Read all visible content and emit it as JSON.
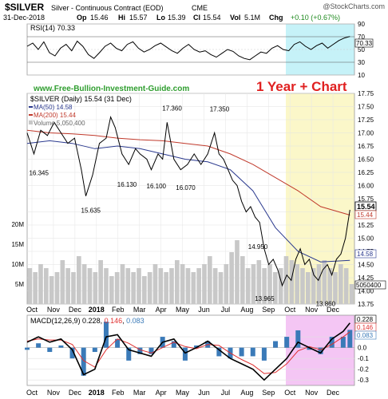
{
  "header": {
    "symbol": "$SILVER",
    "name": "Silver - Continuous Contract (EOD)",
    "exchange": "CME",
    "watermark": "@StockCharts.com",
    "date": "31-Dec-2018",
    "op_label": "Op",
    "op": "15.46",
    "hi_label": "Hi",
    "hi": "15.57",
    "lo_label": "Lo",
    "lo": "15.39",
    "cl_label": "Cl",
    "cl": "15.54",
    "vol_label": "Vol",
    "vol": "5.1M",
    "chg_label": "Chg",
    "chg": "+0.10 (+0.67%)"
  },
  "site": "www.Free-Bullion-Investment-Guide.com",
  "overlay_title": "1 Year + Chart",
  "colors": {
    "rsi_line": "#000000",
    "price": "#000000",
    "ma50": "#2b3a8f",
    "ma200": "#c0392b",
    "volume": "#c8c8c8",
    "macd": "#000000",
    "signal": "#e03030",
    "histogram": "#3a7ab8",
    "highlight_cyan": "#c6f2f8",
    "highlight_yellow": "#fbf7c9",
    "highlight_magenta": "#f4c6f4",
    "site_text": "#2f9e2f",
    "title_text": "#e02020"
  },
  "chart_data": [
    {
      "type": "line",
      "id": "rsi",
      "label": "RSI(14)",
      "value_label": "70.33",
      "y_ticks": [
        "90",
        "70",
        "50",
        "30",
        "10"
      ],
      "ylim": [
        10,
        90
      ],
      "last_value": 70.33,
      "values": [
        55,
        60,
        50,
        62,
        45,
        40,
        52,
        58,
        48,
        63,
        55,
        42,
        36,
        45,
        55,
        60,
        52,
        48,
        58,
        62,
        52,
        46,
        50,
        56,
        60,
        54,
        48,
        44,
        52,
        58,
        50,
        46,
        48,
        42,
        38,
        44,
        50,
        47,
        40,
        36,
        34,
        40,
        46,
        44,
        52,
        56,
        50,
        48,
        58,
        62,
        55,
        50,
        56,
        60,
        52,
        58,
        64,
        68,
        70.33
      ]
    },
    {
      "type": "line",
      "id": "price",
      "label": "$SILVER (Daily) 15.54 (31 Dec)",
      "legend": [
        {
          "name": "MA(50)",
          "value": "14.58"
        },
        {
          "name": "MA(200)",
          "value": "15.44"
        },
        {
          "name": "Volume",
          "value": "5,050,400"
        }
      ],
      "y_ticks": [
        "17.75",
        "17.50",
        "17.25",
        "17.00",
        "16.75",
        "16.50",
        "16.25",
        "16.00",
        "15.75",
        "15.50",
        "15.25",
        "15.00",
        "14.75",
        "14.50",
        "14.25",
        "14.00",
        "13.75"
      ],
      "ylim": [
        13.75,
        17.75
      ],
      "vol_ticks": [
        "20M",
        "15M",
        "10M",
        "5M"
      ],
      "vol_max": 20,
      "annotations": [
        {
          "text": "16.345",
          "x": 0.3,
          "y": 16.345
        },
        {
          "text": "15.635",
          "x": 2.6,
          "y": 15.635
        },
        {
          "text": "16.130",
          "x": 4.2,
          "y": 16.13
        },
        {
          "text": "16.100",
          "x": 5.5,
          "y": 16.1
        },
        {
          "text": "16.070",
          "x": 6.8,
          "y": 16.07
        },
        {
          "text": "17.360",
          "x": 6.2,
          "y": 17.36
        },
        {
          "text": "17.350",
          "x": 8.3,
          "y": 17.35
        },
        {
          "text": "14.950",
          "x": 10.0,
          "y": 14.95
        },
        {
          "text": "13.965",
          "x": 10.3,
          "y": 13.965
        },
        {
          "text": "13.860",
          "x": 13.0,
          "y": 13.86
        }
      ],
      "last_price": "15.54",
      "last_ma200": "15.44",
      "last_ma50": "14.58",
      "last_volume": "5050400",
      "close": [
        [
          0,
          17.0
        ],
        [
          0.3,
          16.6
        ],
        [
          0.6,
          17.05
        ],
        [
          0.9,
          16.95
        ],
        [
          1.2,
          17.2
        ],
        [
          1.5,
          17.0
        ],
        [
          1.8,
          16.8
        ],
        [
          2.1,
          16.9
        ],
        [
          2.4,
          16.3
        ],
        [
          2.6,
          15.8
        ],
        [
          2.9,
          16.2
        ],
        [
          3.2,
          16.8
        ],
        [
          3.5,
          16.9
        ],
        [
          3.7,
          17.3
        ],
        [
          3.9,
          17.1
        ],
        [
          4.2,
          16.6
        ],
        [
          4.5,
          16.4
        ],
        [
          4.8,
          16.7
        ],
        [
          5.0,
          16.6
        ],
        [
          5.3,
          16.5
        ],
        [
          5.5,
          16.3
        ],
        [
          5.8,
          16.6
        ],
        [
          6.0,
          16.5
        ],
        [
          6.2,
          17.2
        ],
        [
          6.5,
          16.5
        ],
        [
          6.8,
          16.3
        ],
        [
          7.1,
          16.4
        ],
        [
          7.4,
          16.6
        ],
        [
          7.7,
          16.4
        ],
        [
          8.0,
          16.6
        ],
        [
          8.3,
          17.0
        ],
        [
          8.5,
          16.6
        ],
        [
          8.7,
          16.5
        ],
        [
          8.9,
          16.3
        ],
        [
          9.1,
          16.1
        ],
        [
          9.3,
          16.0
        ],
        [
          9.5,
          15.7
        ],
        [
          9.7,
          15.5
        ],
        [
          9.9,
          15.6
        ],
        [
          10.1,
          15.4
        ],
        [
          10.3,
          15.3
        ],
        [
          10.5,
          14.8
        ],
        [
          10.7,
          14.5
        ],
        [
          10.9,
          14.6
        ],
        [
          11.1,
          14.4
        ],
        [
          11.3,
          14.1
        ],
        [
          11.5,
          14.3
        ],
        [
          11.7,
          14.2
        ],
        [
          11.9,
          14.6
        ],
        [
          12.1,
          14.8
        ],
        [
          12.3,
          14.5
        ],
        [
          12.5,
          14.6
        ],
        [
          12.7,
          14.3
        ],
        [
          12.9,
          14.2
        ],
        [
          13.1,
          14.4
        ],
        [
          13.3,
          14.5
        ],
        [
          13.5,
          14.3
        ],
        [
          13.7,
          14.6
        ],
        [
          13.9,
          14.7
        ],
        [
          14.1,
          15.0
        ],
        [
          14.3,
          15.54
        ]
      ],
      "ma50": [
        [
          0,
          16.8
        ],
        [
          1,
          16.85
        ],
        [
          2,
          16.8
        ],
        [
          3,
          16.7
        ],
        [
          4,
          16.75
        ],
        [
          5,
          16.7
        ],
        [
          6,
          16.6
        ],
        [
          7,
          16.5
        ],
        [
          8,
          16.45
        ],
        [
          9,
          16.3
        ],
        [
          10,
          15.9
        ],
        [
          11,
          15.2
        ],
        [
          12,
          14.75
        ],
        [
          13,
          14.55
        ],
        [
          14.3,
          14.58
        ]
      ],
      "ma200": [
        [
          0,
          17.05
        ],
        [
          1,
          17.0
        ],
        [
          2,
          16.98
        ],
        [
          3,
          16.95
        ],
        [
          4,
          16.9
        ],
        [
          5,
          16.87
        ],
        [
          6,
          16.85
        ],
        [
          7,
          16.8
        ],
        [
          8,
          16.75
        ],
        [
          9,
          16.6
        ],
        [
          10,
          16.4
        ],
        [
          11,
          16.15
        ],
        [
          12,
          15.9
        ],
        [
          13,
          15.6
        ],
        [
          14.3,
          15.44
        ]
      ],
      "volume": [
        9,
        8,
        10,
        9,
        7,
        8,
        11,
        9,
        8,
        12,
        10,
        9,
        8,
        11,
        9,
        7,
        8,
        10,
        9,
        8,
        9,
        7,
        8,
        10,
        9,
        8,
        9,
        11,
        10,
        9,
        8,
        9,
        10,
        12,
        9,
        8,
        10,
        13,
        16,
        12,
        9,
        10,
        11,
        9,
        10,
        8,
        9,
        12,
        11,
        10,
        9,
        8,
        9,
        10,
        11,
        9,
        8,
        10,
        9,
        5
      ]
    },
    {
      "type": "line",
      "id": "macd",
      "label": "MACD(12,26,9)",
      "macd_value": "0.228",
      "signal_value": "0.146",
      "hist_value": "0.083",
      "y_ticks": [
        "0.1",
        "0.0",
        "-0.1",
        "-0.2",
        "-0.3"
      ],
      "ylim": [
        -0.35,
        0.3
      ],
      "macd": [
        [
          0,
          0.05
        ],
        [
          0.5,
          0.1
        ],
        [
          1,
          0.05
        ],
        [
          1.5,
          0.08
        ],
        [
          2,
          -0.02
        ],
        [
          2.5,
          -0.25
        ],
        [
          3,
          -0.2
        ],
        [
          3.5,
          0.1
        ],
        [
          4,
          0.12
        ],
        [
          4.5,
          -0.02
        ],
        [
          5,
          -0.05
        ],
        [
          5.5,
          -0.08
        ],
        [
          6,
          0.05
        ],
        [
          6.5,
          0.08
        ],
        [
          7,
          -0.05
        ],
        [
          7.5,
          0.0
        ],
        [
          8,
          0.06
        ],
        [
          8.5,
          -0.02
        ],
        [
          9,
          -0.1
        ],
        [
          9.5,
          -0.15
        ],
        [
          10,
          -0.2
        ],
        [
          10.5,
          -0.3
        ],
        [
          11,
          -0.2
        ],
        [
          11.5,
          -0.1
        ],
        [
          12,
          0.05
        ],
        [
          12.5,
          0.0
        ],
        [
          13,
          -0.05
        ],
        [
          13.5,
          0.08
        ],
        [
          14,
          0.15
        ],
        [
          14.3,
          0.228
        ]
      ],
      "signal": [
        [
          0,
          0.06
        ],
        [
          0.5,
          0.08
        ],
        [
          1,
          0.07
        ],
        [
          1.5,
          0.07
        ],
        [
          2,
          0.03
        ],
        [
          2.5,
          -0.12
        ],
        [
          3,
          -0.18
        ],
        [
          3.5,
          -0.02
        ],
        [
          4,
          0.08
        ],
        [
          4.5,
          0.04
        ],
        [
          5,
          -0.02
        ],
        [
          5.5,
          -0.05
        ],
        [
          6,
          0.0
        ],
        [
          6.5,
          0.05
        ],
        [
          7,
          0.01
        ],
        [
          7.5,
          -0.01
        ],
        [
          8,
          0.03
        ],
        [
          8.5,
          0.02
        ],
        [
          9,
          -0.05
        ],
        [
          9.5,
          -0.11
        ],
        [
          10,
          -0.16
        ],
        [
          10.5,
          -0.24
        ],
        [
          11,
          -0.23
        ],
        [
          11.5,
          -0.15
        ],
        [
          12,
          -0.03
        ],
        [
          12.5,
          0.01
        ],
        [
          13,
          -0.02
        ],
        [
          13.5,
          0.03
        ],
        [
          14,
          0.1
        ],
        [
          14.3,
          0.146
        ]
      ]
    }
  ],
  "months": [
    "Oct",
    "Nov",
    "Dec",
    "2018",
    "Feb",
    "Mar",
    "Apr",
    "May",
    "Jun",
    "Jul",
    "Aug",
    "Sep",
    "Oct",
    "Nov",
    "Dec"
  ]
}
